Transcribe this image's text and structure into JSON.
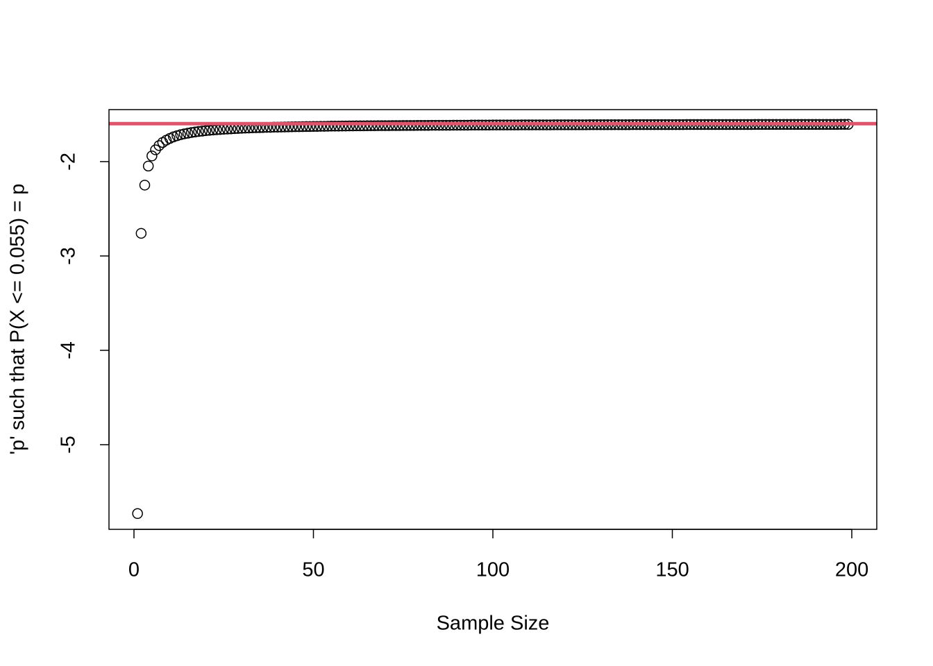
{
  "chart_data": {
    "type": "scatter",
    "xlabel": "Sample Size",
    "ylabel": "'p' such that P(X <= 0.055) = p",
    "x": [
      1,
      2,
      3,
      4,
      5,
      6,
      7,
      8,
      9,
      10,
      11,
      12,
      13,
      14,
      15,
      16,
      17,
      18,
      19,
      20,
      21,
      22,
      23,
      24,
      25,
      26,
      27,
      28,
      29,
      30,
      31,
      32,
      33,
      34,
      35,
      36,
      37,
      38,
      39,
      40,
      41,
      42,
      43,
      44,
      45,
      46,
      47,
      48,
      49,
      50,
      51,
      52,
      53,
      54,
      55,
      56,
      57,
      58,
      59,
      60,
      61,
      62,
      63,
      64,
      65,
      66,
      67,
      68,
      69,
      70,
      71,
      72,
      73,
      74,
      75,
      76,
      77,
      78,
      79,
      80,
      81,
      82,
      83,
      84,
      85,
      86,
      87,
      88,
      89,
      90,
      91,
      92,
      93,
      94,
      95,
      96,
      97,
      98,
      99,
      100,
      101,
      102,
      103,
      104,
      105,
      106,
      107,
      108,
      109,
      110,
      111,
      112,
      113,
      114,
      115,
      116,
      117,
      118,
      119,
      120,
      121,
      122,
      123,
      124,
      125,
      126,
      127,
      128,
      129,
      130,
      131,
      132,
      133,
      134,
      135,
      136,
      137,
      138,
      139,
      140,
      141,
      142,
      143,
      144,
      145,
      146,
      147,
      148,
      149,
      150,
      151,
      152,
      153,
      154,
      155,
      156,
      157,
      158,
      159,
      160,
      161,
      162,
      163,
      164,
      165,
      166,
      167,
      168,
      169,
      170,
      171,
      172,
      173,
      174,
      175,
      176,
      177,
      178,
      179,
      180,
      181,
      182,
      183,
      184,
      185,
      186,
      187,
      188,
      189,
      190,
      191,
      192,
      193,
      194,
      195,
      196,
      197,
      198,
      199
    ],
    "values": [
      -5.73,
      -2.76,
      -2.249,
      -2.047,
      -1.94,
      -1.875,
      -1.83,
      -1.797,
      -1.773,
      -1.754,
      -1.738,
      -1.726,
      -1.715,
      -1.706,
      -1.699,
      -1.692,
      -1.686,
      -1.681,
      -1.677,
      -1.672,
      -1.669,
      -1.665,
      -1.662,
      -1.66,
      -1.657,
      -1.655,
      -1.653,
      -1.65,
      -1.649,
      -1.647,
      -1.645,
      -1.644,
      -1.642,
      -1.641,
      -1.64,
      -1.639,
      -1.637,
      -1.637,
      -1.635,
      -1.635,
      -1.634,
      -1.633,
      -1.632,
      -1.631,
      -1.63,
      -1.63,
      -1.629,
      -1.628,
      -1.628,
      -1.627,
      -1.627,
      -1.626,
      -1.626,
      -1.625,
      -1.624,
      -1.624,
      -1.624,
      -1.623,
      -1.623,
      -1.622,
      -1.622,
      -1.621,
      -1.621,
      -1.621,
      -1.62,
      -1.62,
      -1.62,
      -1.619,
      -1.619,
      -1.619,
      -1.619,
      -1.618,
      -1.618,
      -1.618,
      -1.617,
      -1.617,
      -1.617,
      -1.617,
      -1.616,
      -1.616,
      -1.616,
      -1.616,
      -1.615,
      -1.615,
      -1.615,
      -1.615,
      -1.615,
      -1.615,
      -1.614,
      -1.614,
      -1.614,
      -1.614,
      -1.614,
      -1.613,
      -1.613,
      -1.613,
      -1.613,
      -1.613,
      -1.613,
      -1.612,
      -1.612,
      -1.612,
      -1.612,
      -1.612,
      -1.612,
      -1.612,
      -1.612,
      -1.611,
      -1.611,
      -1.611,
      -1.611,
      -1.611,
      -1.611,
      -1.611,
      -1.611,
      -1.611,
      -1.61,
      -1.61,
      -1.61,
      -1.61,
      -1.61,
      -1.61,
      -1.61,
      -1.61,
      -1.61,
      -1.61,
      -1.609,
      -1.609,
      -1.609,
      -1.609,
      -1.609,
      -1.609,
      -1.609,
      -1.609,
      -1.609,
      -1.609,
      -1.609,
      -1.609,
      -1.608,
      -1.608,
      -1.608,
      -1.608,
      -1.608,
      -1.608,
      -1.608,
      -1.608,
      -1.608,
      -1.608,
      -1.608,
      -1.608,
      -1.608,
      -1.608,
      -1.608,
      -1.607,
      -1.607,
      -1.607,
      -1.607,
      -1.607,
      -1.607,
      -1.607,
      -1.607,
      -1.607,
      -1.607,
      -1.607,
      -1.607,
      -1.607,
      -1.607,
      -1.607,
      -1.607,
      -1.607,
      -1.607,
      -1.607,
      -1.606,
      -1.606,
      -1.606,
      -1.606,
      -1.606,
      -1.606,
      -1.606,
      -1.606,
      -1.606,
      -1.606,
      -1.606,
      -1.606,
      -1.606,
      -1.606,
      -1.606,
      -1.606,
      -1.606,
      -1.606,
      -1.606,
      -1.606,
      -1.606,
      -1.606,
      -1.606,
      -1.606,
      -1.605,
      -1.605,
      -1.605
    ],
    "color": "#000000",
    "hline": {
      "value": -1.598,
      "color": "#DF536B"
    },
    "xlim": [
      -6.96,
      206.96
    ],
    "ylim": [
      -5.897,
      -1.449
    ],
    "xticks": [
      0,
      50,
      100,
      150,
      200
    ],
    "yticks": [
      -5,
      -4,
      -3,
      -2
    ]
  }
}
